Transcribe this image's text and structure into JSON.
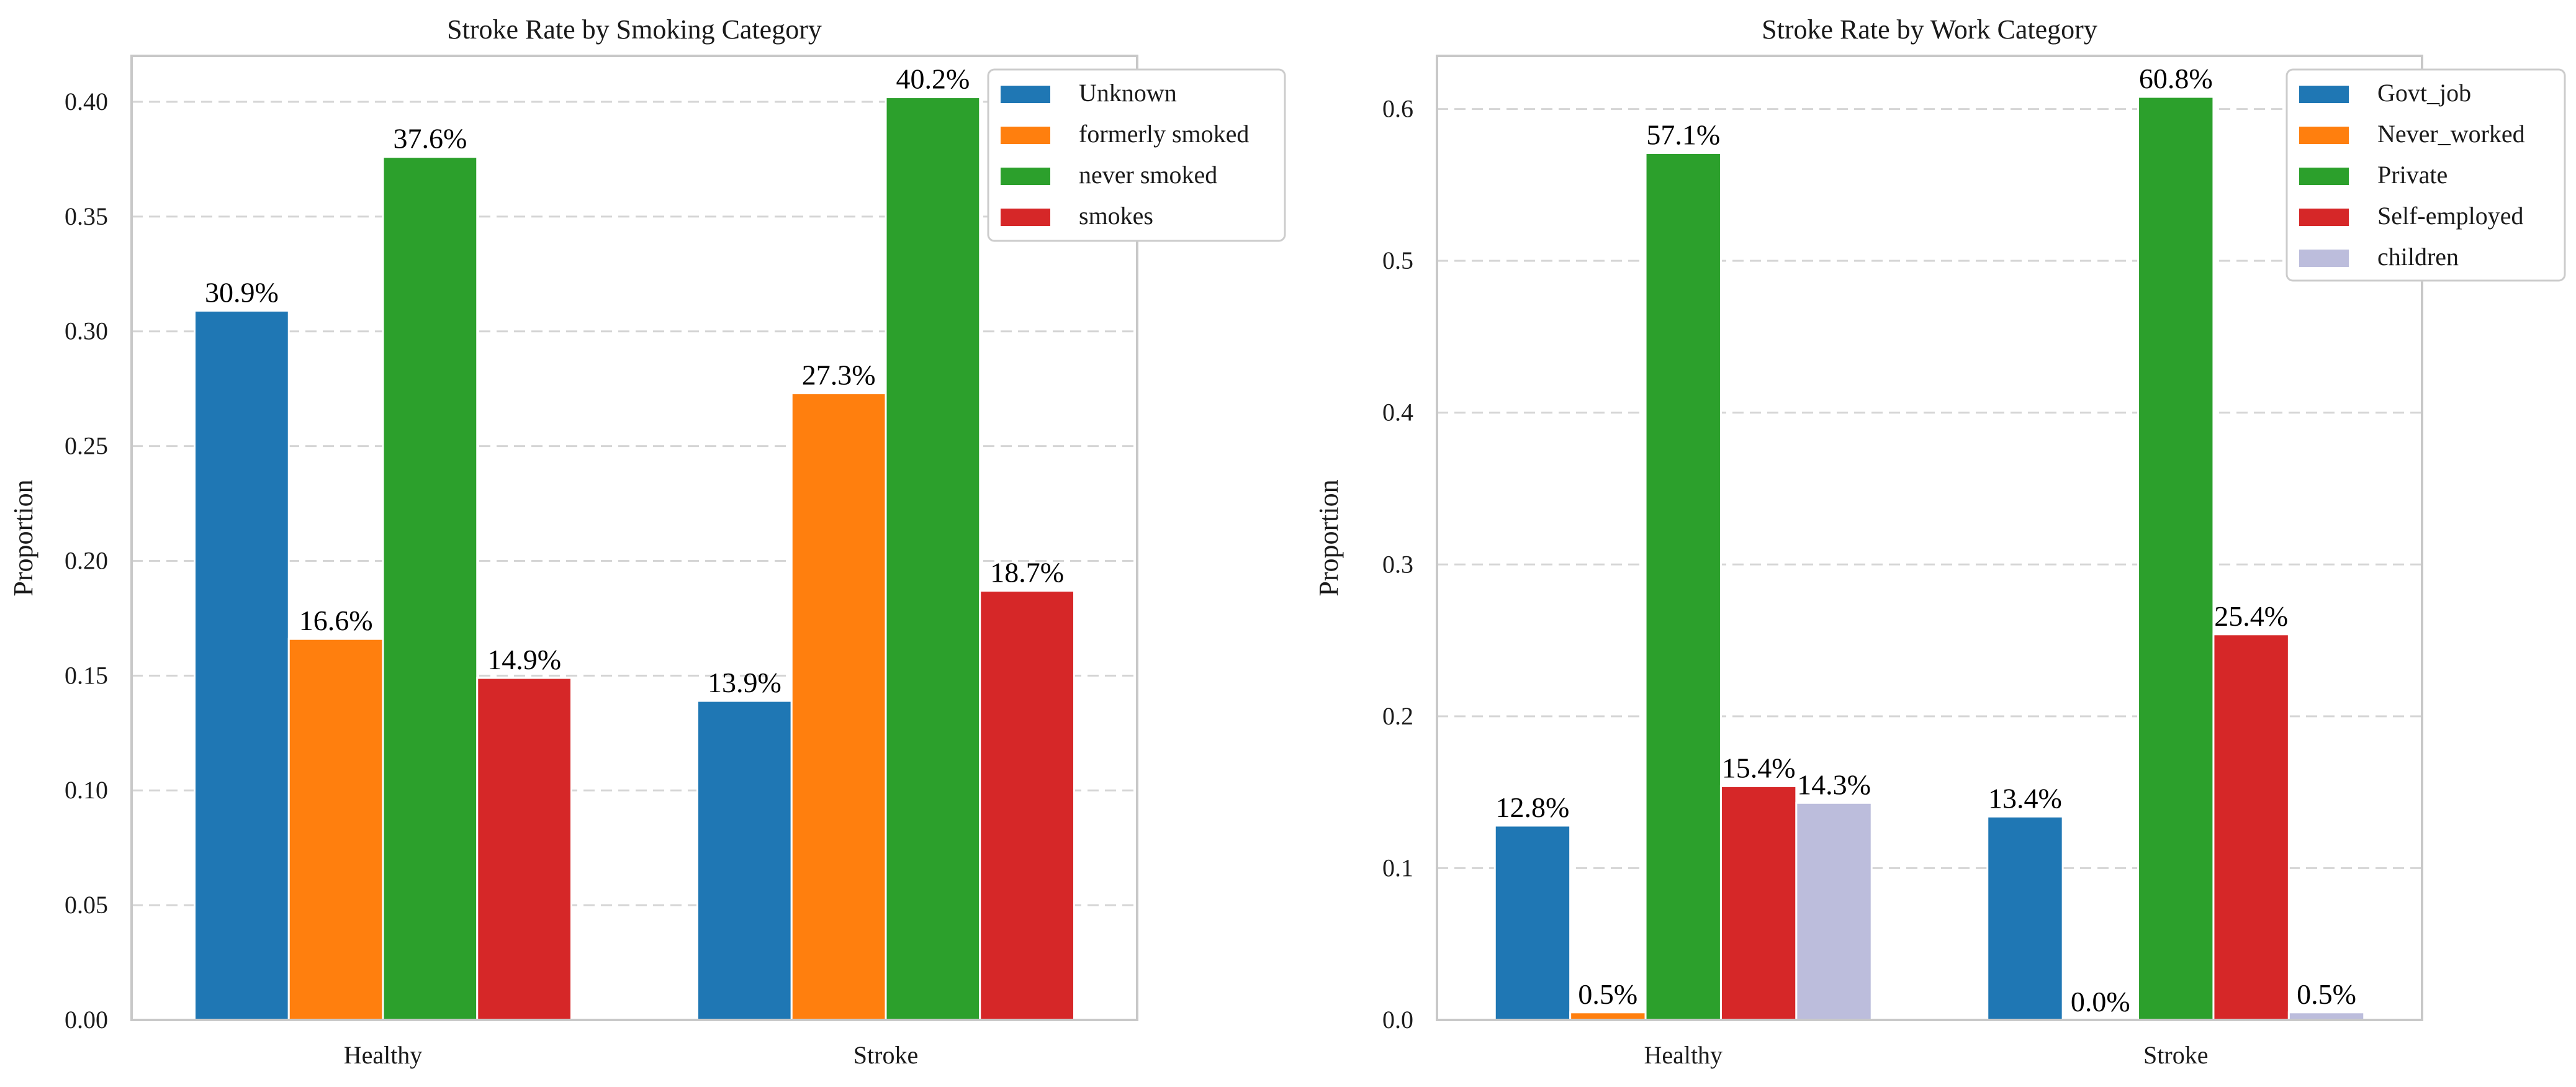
{
  "chart_data": [
    {
      "type": "bar",
      "title": "Stroke Rate by Smoking Category",
      "xlabel": "",
      "ylabel": "Proportion",
      "categories": [
        "Healthy",
        "Stroke"
      ],
      "ylim": [
        0,
        0.42
      ],
      "yticks": [
        0.0,
        0.05,
        0.1,
        0.15,
        0.2,
        0.25,
        0.3,
        0.35,
        0.4
      ],
      "ytick_labels": [
        "0.00",
        "0.05",
        "0.10",
        "0.15",
        "0.20",
        "0.25",
        "0.30",
        "0.35",
        "0.40"
      ],
      "grid": true,
      "legend_position": "top-right",
      "series": [
        {
          "name": "Unknown",
          "color": "#1f77b4",
          "values": [
            0.309,
            0.139
          ],
          "labels": [
            "30.9%",
            "13.9%"
          ]
        },
        {
          "name": "formerly smoked",
          "color": "#ff7f0e",
          "values": [
            0.166,
            0.273
          ],
          "labels": [
            "16.6%",
            "27.3%"
          ]
        },
        {
          "name": "never smoked",
          "color": "#2ca02c",
          "values": [
            0.376,
            0.402
          ],
          "labels": [
            "37.6%",
            "40.2%"
          ]
        },
        {
          "name": "smokes",
          "color": "#d62728",
          "values": [
            0.149,
            0.187
          ],
          "labels": [
            "14.9%",
            "18.7%"
          ]
        }
      ]
    },
    {
      "type": "bar",
      "title": "Stroke Rate by Work Category",
      "xlabel": "",
      "ylabel": "Proportion",
      "categories": [
        "Healthy",
        "Stroke"
      ],
      "ylim": [
        0,
        0.635
      ],
      "yticks": [
        0.0,
        0.1,
        0.2,
        0.3,
        0.4,
        0.5,
        0.6
      ],
      "ytick_labels": [
        "0.0",
        "0.1",
        "0.2",
        "0.3",
        "0.4",
        "0.5",
        "0.6"
      ],
      "grid": true,
      "legend_position": "top-right",
      "series": [
        {
          "name": "Govt_job",
          "color": "#1f77b4",
          "values": [
            0.128,
            0.134
          ],
          "labels": [
            "12.8%",
            "13.4%"
          ]
        },
        {
          "name": "Never_worked",
          "color": "#ff7f0e",
          "values": [
            0.005,
            0.0
          ],
          "labels": [
            "0.5%",
            "0.0%"
          ]
        },
        {
          "name": "Private",
          "color": "#2ca02c",
          "values": [
            0.571,
            0.608
          ],
          "labels": [
            "57.1%",
            "60.8%"
          ]
        },
        {
          "name": "Self-employed",
          "color": "#d62728",
          "values": [
            0.154,
            0.254
          ],
          "labels": [
            "15.4%",
            "25.4%"
          ]
        },
        {
          "name": "children",
          "color": "#bcbddc",
          "values": [
            0.143,
            0.005
          ],
          "labels": [
            "14.3%",
            "0.5%"
          ]
        }
      ]
    }
  ]
}
